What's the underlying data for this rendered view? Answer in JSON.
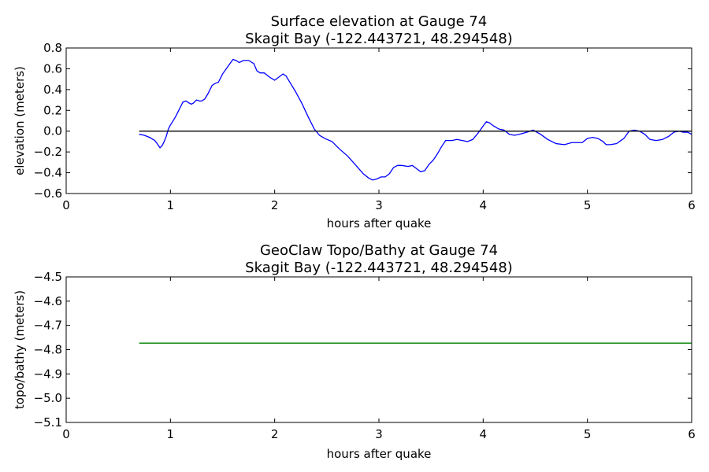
{
  "chart_data": [
    {
      "type": "line",
      "title": "Surface elevation at Gauge 74",
      "subtitle": "Skagit Bay  (-122.443721, 48.294548)",
      "xlabel": "hours after quake",
      "ylabel": "elevation (meters)",
      "xlim": [
        0,
        6
      ],
      "ylim": [
        -0.6,
        0.8
      ],
      "xticks": [
        "0",
        "1",
        "2",
        "3",
        "4",
        "5",
        "6"
      ],
      "yticks": [
        "−0.6",
        "−0.4",
        "−0.2",
        "0.0",
        "0.2",
        "0.4",
        "0.6",
        "0.8"
      ],
      "grid": false,
      "series": [
        {
          "color": "#0000ff",
          "x": [
            0.7,
            0.75,
            0.8,
            0.85,
            0.88,
            0.9,
            0.92,
            0.94,
            0.96,
            0.98,
            1.0,
            1.02,
            1.05,
            1.08,
            1.1,
            1.12,
            1.15,
            1.18,
            1.2,
            1.22,
            1.25,
            1.28,
            1.3,
            1.33,
            1.36,
            1.4,
            1.43,
            1.46,
            1.5,
            1.55,
            1.6,
            1.63,
            1.66,
            1.7,
            1.75,
            1.8,
            1.83,
            1.86,
            1.9,
            1.95,
            2.0,
            2.04,
            2.08,
            2.11,
            2.14,
            2.2,
            2.26,
            2.32,
            2.38,
            2.43,
            2.48,
            2.55,
            2.62,
            2.7,
            2.78,
            2.85,
            2.9,
            2.94,
            2.98,
            3.02,
            3.06,
            3.1,
            3.14,
            3.18,
            3.22,
            3.28,
            3.32,
            3.36,
            3.4,
            3.44,
            3.48,
            3.52,
            3.56,
            3.6,
            3.64,
            3.7,
            3.75,
            3.8,
            3.85,
            3.9,
            3.95,
            4.0,
            4.03,
            4.06,
            4.1,
            4.15,
            4.2,
            4.25,
            4.3,
            4.35,
            4.42,
            4.48,
            4.55,
            4.62,
            4.7,
            4.78,
            4.85,
            4.9,
            4.95,
            5.0,
            5.05,
            5.1,
            5.15,
            5.18,
            5.22,
            5.28,
            5.35,
            5.4,
            5.45,
            5.5,
            5.55,
            5.6,
            5.66,
            5.72,
            5.78,
            5.83,
            5.88,
            5.92,
            5.96,
            6.0
          ],
          "y": [
            -0.03,
            -0.04,
            -0.06,
            -0.09,
            -0.13,
            -0.16,
            -0.14,
            -0.1,
            -0.05,
            0.02,
            0.06,
            0.09,
            0.14,
            0.2,
            0.24,
            0.28,
            0.29,
            0.27,
            0.26,
            0.27,
            0.3,
            0.29,
            0.29,
            0.31,
            0.36,
            0.44,
            0.46,
            0.47,
            0.55,
            0.62,
            0.69,
            0.68,
            0.66,
            0.68,
            0.68,
            0.65,
            0.58,
            0.56,
            0.56,
            0.52,
            0.49,
            0.52,
            0.55,
            0.53,
            0.48,
            0.38,
            0.27,
            0.14,
            0.02,
            -0.04,
            -0.07,
            -0.1,
            -0.17,
            -0.24,
            -0.33,
            -0.41,
            -0.45,
            -0.47,
            -0.46,
            -0.44,
            -0.44,
            -0.41,
            -0.35,
            -0.33,
            -0.33,
            -0.34,
            -0.33,
            -0.36,
            -0.39,
            -0.38,
            -0.32,
            -0.28,
            -0.22,
            -0.15,
            -0.09,
            -0.09,
            -0.08,
            -0.09,
            -0.1,
            -0.08,
            -0.02,
            0.05,
            0.09,
            0.08,
            0.05,
            0.02,
            0.01,
            -0.03,
            -0.04,
            -0.03,
            -0.01,
            0.01,
            -0.03,
            -0.08,
            -0.12,
            -0.13,
            -0.11,
            -0.11,
            -0.11,
            -0.07,
            -0.06,
            -0.07,
            -0.1,
            -0.13,
            -0.13,
            -0.12,
            -0.07,
            0.0,
            0.01,
            0.0,
            -0.03,
            -0.08,
            -0.09,
            -0.08,
            -0.05,
            -0.01,
            0.0,
            -0.01,
            -0.01,
            -0.03
          ]
        },
        {
          "color": "#000000",
          "x": [
            0.7,
            6.0
          ],
          "y": [
            0.0,
            0.0
          ]
        }
      ]
    },
    {
      "type": "line",
      "title": "GeoClaw Topo/Bathy at Gauge 74",
      "subtitle": "Skagit Bay  (-122.443721, 48.294548)",
      "xlabel": "hours after quake",
      "ylabel": "topo/bathy (meters)",
      "xlim": [
        0,
        6
      ],
      "ylim": [
        -5.1,
        -4.5
      ],
      "xticks": [
        "0",
        "1",
        "2",
        "3",
        "4",
        "5",
        "6"
      ],
      "yticks": [
        "−5.1",
        "−5.0",
        "−4.9",
        "−4.8",
        "−4.7",
        "−4.6",
        "−4.5"
      ],
      "grid": false,
      "series": [
        {
          "color": "#008000",
          "x": [
            0.7,
            6.0
          ],
          "y": [
            -4.773,
            -4.773
          ]
        }
      ]
    }
  ]
}
